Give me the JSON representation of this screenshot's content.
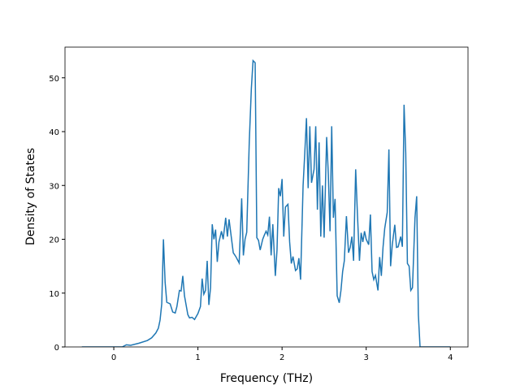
{
  "chart_data": {
    "type": "line",
    "xlabel": "Frequency (THz)",
    "ylabel": "Density of States",
    "xlim": [
      -0.58,
      4.21
    ],
    "ylim": [
      0,
      55.7
    ],
    "xticks": [
      0,
      1,
      2,
      3,
      4
    ],
    "yticks": [
      0,
      10,
      20,
      30,
      40,
      50
    ],
    "grid": false,
    "series": [
      {
        "color": "#1f77b4",
        "x": [
          -0.38,
          0.1,
          0.15,
          0.2,
          0.3,
          0.4,
          0.45,
          0.5,
          0.53,
          0.55,
          0.57,
          0.59,
          0.61,
          0.63,
          0.67,
          0.7,
          0.73,
          0.75,
          0.78,
          0.8,
          0.82,
          0.84,
          0.88,
          0.9,
          0.93,
          0.96,
          1.0,
          1.03,
          1.05,
          1.07,
          1.09,
          1.11,
          1.13,
          1.15,
          1.17,
          1.19,
          1.21,
          1.23,
          1.25,
          1.28,
          1.3,
          1.33,
          1.35,
          1.37,
          1.42,
          1.45,
          1.49,
          1.52,
          1.54,
          1.56,
          1.58,
          1.61,
          1.635,
          1.655,
          1.68,
          1.7,
          1.72,
          1.74,
          1.77,
          1.79,
          1.81,
          1.83,
          1.85,
          1.87,
          1.89,
          1.92,
          1.94,
          1.96,
          1.98,
          2.0,
          2.02,
          2.04,
          2.07,
          2.09,
          2.11,
          2.13,
          2.16,
          2.18,
          2.2,
          2.22,
          2.25,
          2.27,
          2.29,
          2.31,
          2.33,
          2.35,
          2.38,
          2.4,
          2.42,
          2.44,
          2.46,
          2.48,
          2.5,
          2.53,
          2.55,
          2.57,
          2.59,
          2.61,
          2.63,
          2.655,
          2.68,
          2.7,
          2.72,
          2.74,
          2.765,
          2.79,
          2.81,
          2.83,
          2.85,
          2.875,
          2.895,
          2.92,
          2.94,
          2.96,
          2.98,
          3.0,
          3.03,
          3.05,
          3.07,
          3.09,
          3.11,
          3.14,
          3.16,
          3.18,
          3.2,
          3.22,
          3.25,
          3.27,
          3.29,
          3.31,
          3.34,
          3.36,
          3.38,
          3.41,
          3.43,
          3.45,
          3.47,
          3.49,
          3.51,
          3.53,
          3.55,
          3.58,
          3.6,
          3.62,
          3.64,
          4.0
        ],
        "values": [
          0,
          0,
          0.4,
          0.3,
          0.7,
          1.2,
          1.7,
          2.6,
          3.5,
          5,
          8,
          20,
          12,
          8.3,
          8,
          6.5,
          6.3,
          7.5,
          10.5,
          10.4,
          13.2,
          9.5,
          6,
          5.4,
          5.5,
          5.1,
          6.2,
          7.5,
          12.7,
          9.8,
          10.5,
          16,
          7.8,
          11,
          22.8,
          20,
          21.8,
          15.8,
          19.5,
          21.5,
          20,
          24,
          20.5,
          23.7,
          17.5,
          16.8,
          15.6,
          27.6,
          17,
          20,
          21.3,
          38,
          48,
          53.2,
          52.8,
          20.3,
          19.8,
          18,
          20,
          20.8,
          21.5,
          20.8,
          24.2,
          17,
          22.8,
          13.2,
          18,
          29.5,
          28,
          31.2,
          20.5,
          26,
          26.5,
          19.5,
          15.5,
          16.8,
          14.2,
          14.5,
          16.5,
          12.5,
          30,
          36,
          42.5,
          29.5,
          41,
          30.5,
          33,
          41,
          25.5,
          38,
          20.5,
          30,
          20.3,
          39,
          32,
          21.5,
          41,
          24,
          27.5,
          9.5,
          8.2,
          10.5,
          14,
          16,
          24.3,
          17.5,
          18.5,
          20.5,
          16,
          33,
          25,
          16,
          21.2,
          19.5,
          21.5,
          20,
          19,
          24.6,
          14,
          12.5,
          13.3,
          10.5,
          16.7,
          13.2,
          18.5,
          22,
          25,
          36.7,
          15,
          19,
          22.7,
          18.5,
          18.6,
          20.5,
          18.6,
          45,
          36,
          15.5,
          15,
          10.5,
          11,
          24,
          28,
          6,
          0,
          0
        ]
      }
    ]
  }
}
